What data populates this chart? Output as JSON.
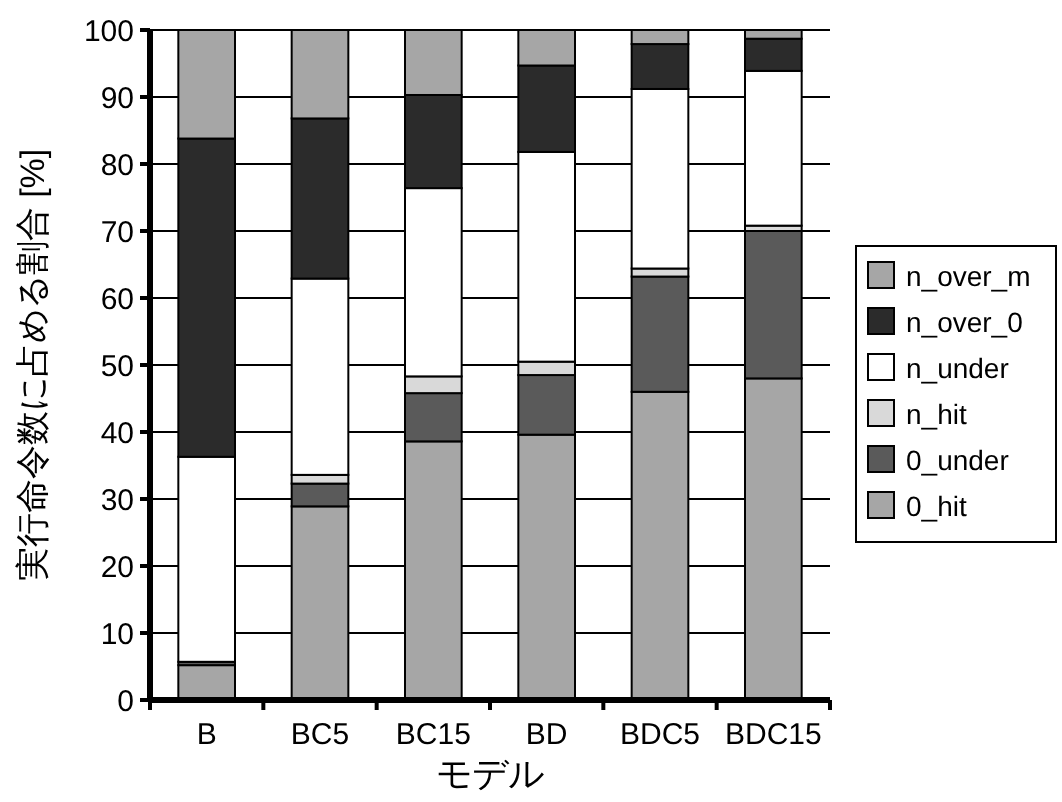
{
  "chart_data": {
    "type": "bar",
    "stacked": true,
    "xlabel": "モデル",
    "ylabel": "実行命令数に占める割合 [%]",
    "categories": [
      "B",
      "BC5",
      "BC15",
      "BD",
      "BDC5",
      "BDC15"
    ],
    "series": [
      {
        "name": "0_hit",
        "color": "#a6a6a6",
        "values": [
          5.2,
          28.9,
          38.6,
          39.6,
          46.0,
          48.0
        ]
      },
      {
        "name": "0_under",
        "color": "#5a5a5a",
        "values": [
          0.5,
          3.4,
          7.2,
          8.9,
          17.2,
          22.0
        ]
      },
      {
        "name": "n_hit",
        "color": "#d9d9d9",
        "values": [
          0,
          1.3,
          2.5,
          2.0,
          1.2,
          0.8
        ]
      },
      {
        "name": "n_under",
        "color": "#ffffff",
        "values": [
          30.6,
          29.3,
          28.1,
          31.3,
          26.8,
          23.1
        ]
      },
      {
        "name": "n_over_0",
        "color": "#2b2b2b",
        "values": [
          47.5,
          23.9,
          13.9,
          12.9,
          6.7,
          4.8
        ]
      },
      {
        "name": "n_over_m",
        "color": "#a6a6a6",
        "values": [
          16.2,
          13.2,
          9.7,
          5.3,
          2.1,
          1.3
        ]
      }
    ],
    "ylim": [
      0,
      100
    ],
    "yticks": [
      0,
      10,
      20,
      30,
      40,
      50,
      60,
      70,
      80,
      90,
      100
    ],
    "grid": "y",
    "legend": "right"
  }
}
